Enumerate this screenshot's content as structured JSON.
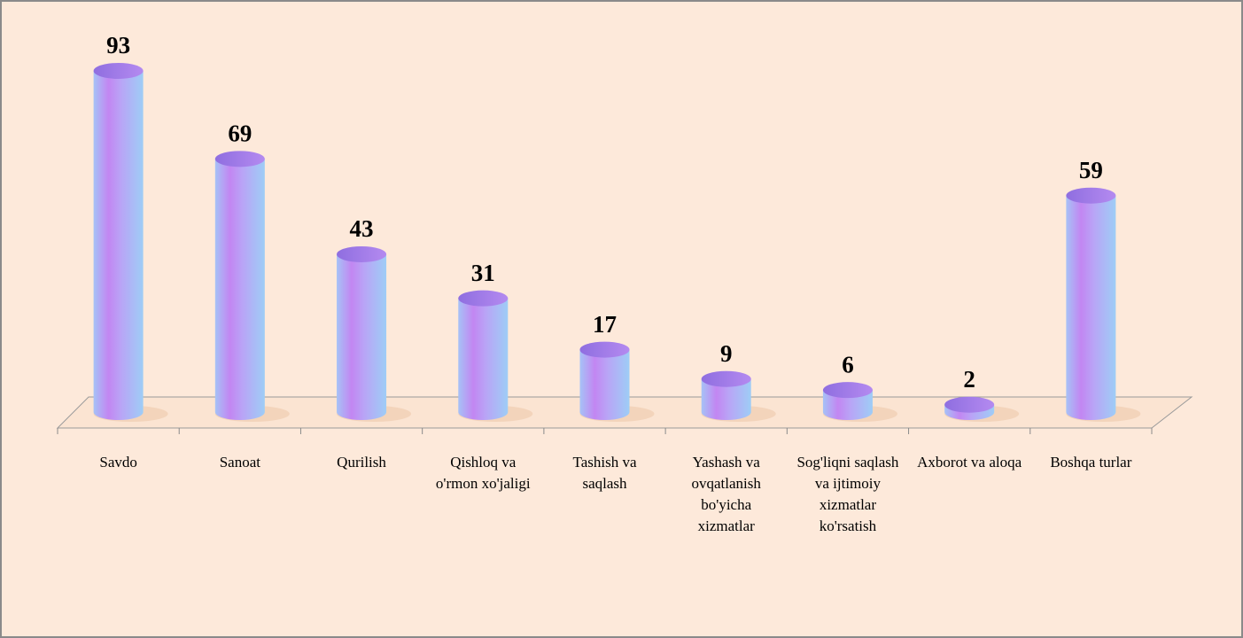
{
  "chart_data": {
    "type": "bar",
    "categories": [
      "Savdo",
      "Sanoat",
      "Qurilish",
      "Qishloq va o'rmon xo'jaligi",
      "Tashish va saqlash",
      "Yashash va ovqatlanish bo'yicha xizmatlar",
      "Sog'liqni saqlash va ijtimoiy xizmatlar ko'rsatish",
      "Axborot va aloqa",
      "Boshqa turlar"
    ],
    "values": [
      93,
      69,
      43,
      31,
      17,
      9,
      6,
      2,
      59
    ]
  }
}
